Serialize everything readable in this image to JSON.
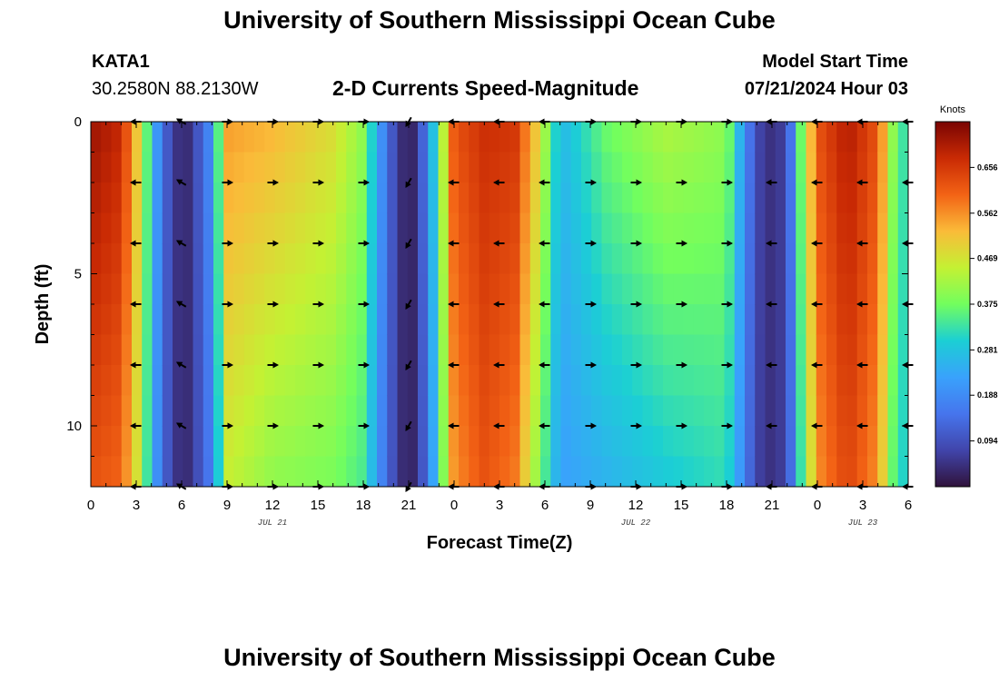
{
  "page_title": "University of Southern Mississippi Ocean Cube",
  "station": {
    "id": "KATA1",
    "location": "30.2580N  88.2130W"
  },
  "model": {
    "label": "Model Start Time",
    "start": "07/21/2024 Hour 03"
  },
  "chart_data": {
    "type": "heatmap",
    "title": "2-D Currents Speed-Magnitude",
    "xlabel": "Forecast Time(Z)",
    "ylabel": "Depth (ft)",
    "x_unit": "forecast hour",
    "x_range": [
      0,
      54
    ],
    "y_range": [
      0,
      12
    ],
    "x_ticks": [
      {
        "h": 0,
        "label": "0"
      },
      {
        "h": 3,
        "label": "3"
      },
      {
        "h": 6,
        "label": "6"
      },
      {
        "h": 9,
        "label": "9"
      },
      {
        "h": 12,
        "label": "12"
      },
      {
        "h": 15,
        "label": "15"
      },
      {
        "h": 18,
        "label": "18"
      },
      {
        "h": 21,
        "label": "21"
      },
      {
        "h": 24,
        "label": "0"
      },
      {
        "h": 27,
        "label": "3"
      },
      {
        "h": 30,
        "label": "6"
      },
      {
        "h": 33,
        "label": "9"
      },
      {
        "h": 36,
        "label": "12"
      },
      {
        "h": 39,
        "label": "15"
      },
      {
        "h": 42,
        "label": "18"
      },
      {
        "h": 45,
        "label": "21"
      },
      {
        "h": 48,
        "label": "0"
      },
      {
        "h": 51,
        "label": "3"
      },
      {
        "h": 54,
        "label": "6"
      }
    ],
    "y_ticks": [
      {
        "depth": 0,
        "label": "0"
      },
      {
        "depth": 5,
        "label": "5"
      },
      {
        "depth": 10,
        "label": "10"
      }
    ],
    "date_labels": [
      {
        "h": 12,
        "label": "JUL 21"
      },
      {
        "h": 36,
        "label": "JUL 22"
      },
      {
        "h": 51,
        "label": "JUL 23"
      }
    ],
    "colorbar": {
      "unit": "Knots",
      "min": 0,
      "max": 0.75,
      "ticks": [
        0.656,
        0.562,
        0.469,
        0.375,
        0.281,
        0.188,
        0.094
      ]
    },
    "speed_profile": {
      "hours": [
        0,
        2,
        3,
        4.5,
        5.5,
        6.5,
        8,
        9,
        12,
        16,
        18,
        19.5,
        20.5,
        21.5,
        22.5,
        24,
        26,
        28,
        29.5,
        31,
        34,
        38,
        42,
        43.5,
        44.5,
        46,
        47,
        48,
        50,
        52,
        53,
        54
      ],
      "surface_knots": [
        0.72,
        0.68,
        0.52,
        0.18,
        0.05,
        0.04,
        0.2,
        0.55,
        0.53,
        0.48,
        0.4,
        0.15,
        0.04,
        0.03,
        0.25,
        0.62,
        0.67,
        0.66,
        0.5,
        0.26,
        0.37,
        0.43,
        0.4,
        0.15,
        0.04,
        0.07,
        0.4,
        0.62,
        0.7,
        0.62,
        0.4,
        0.3
      ],
      "bottom_knots": [
        0.62,
        0.6,
        0.48,
        0.17,
        0.05,
        0.04,
        0.17,
        0.45,
        0.4,
        0.38,
        0.34,
        0.14,
        0.04,
        0.03,
        0.2,
        0.56,
        0.62,
        0.58,
        0.4,
        0.22,
        0.25,
        0.29,
        0.32,
        0.13,
        0.04,
        0.07,
        0.35,
        0.56,
        0.64,
        0.56,
        0.36,
        0.28
      ]
    },
    "vector_hours": [
      3,
      6,
      9,
      12,
      15,
      18,
      21,
      24,
      27,
      30,
      33,
      36,
      39,
      42,
      45,
      48,
      51,
      54
    ],
    "vector_depths": [
      0,
      2,
      4,
      6,
      8,
      10,
      12
    ],
    "vector_directions_deg": [
      180,
      150,
      0,
      0,
      0,
      0,
      240,
      180,
      180,
      180,
      0,
      0,
      0,
      0,
      180,
      180,
      180,
      180
    ]
  }
}
